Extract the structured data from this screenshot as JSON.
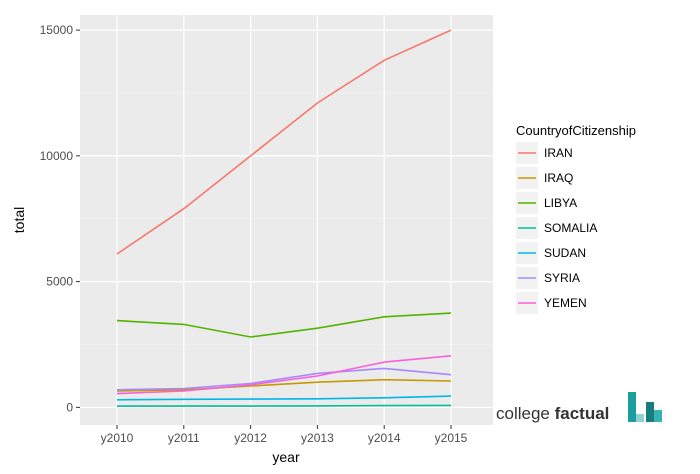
{
  "chart_data": {
    "type": "line",
    "title": "",
    "xlabel": "year",
    "ylabel": "total",
    "x": [
      "y2010",
      "y2011",
      "y2012",
      "y2013",
      "y2014",
      "y2015"
    ],
    "y_ticks": [
      0,
      5000,
      10000,
      15000
    ],
    "y_tick_labels": [
      "0",
      "5000",
      "10000",
      "15000"
    ],
    "ylim": [
      -700,
      15600
    ],
    "grid": true,
    "legend": {
      "title": "CountryofCitizenship",
      "position": "right"
    },
    "series": [
      {
        "name": "IRAN",
        "color": "#F8766D",
        "values": [
          6100,
          7900,
          10000,
          12100,
          13800,
          15000
        ]
      },
      {
        "name": "IRAQ",
        "color": "#C49A00",
        "values": [
          650,
          700,
          850,
          1000,
          1100,
          1050
        ]
      },
      {
        "name": "LIBYA",
        "color": "#53B400",
        "values": [
          3450,
          3300,
          2800,
          3150,
          3600,
          3750
        ]
      },
      {
        "name": "SOMALIA",
        "color": "#00C094",
        "values": [
          50,
          50,
          50,
          60,
          70,
          80
        ]
      },
      {
        "name": "SUDAN",
        "color": "#00B6EB",
        "values": [
          300,
          320,
          330,
          340,
          380,
          450
        ]
      },
      {
        "name": "SYRIA",
        "color": "#A58AFF",
        "values": [
          700,
          750,
          950,
          1350,
          1550,
          1300
        ]
      },
      {
        "name": "YEMEN",
        "color": "#FB61D7",
        "values": [
          550,
          650,
          900,
          1250,
          1800,
          2050
        ]
      }
    ]
  },
  "logo": {
    "text_regular": "college ",
    "text_bold": "factual",
    "color": "#1a9e9e"
  }
}
